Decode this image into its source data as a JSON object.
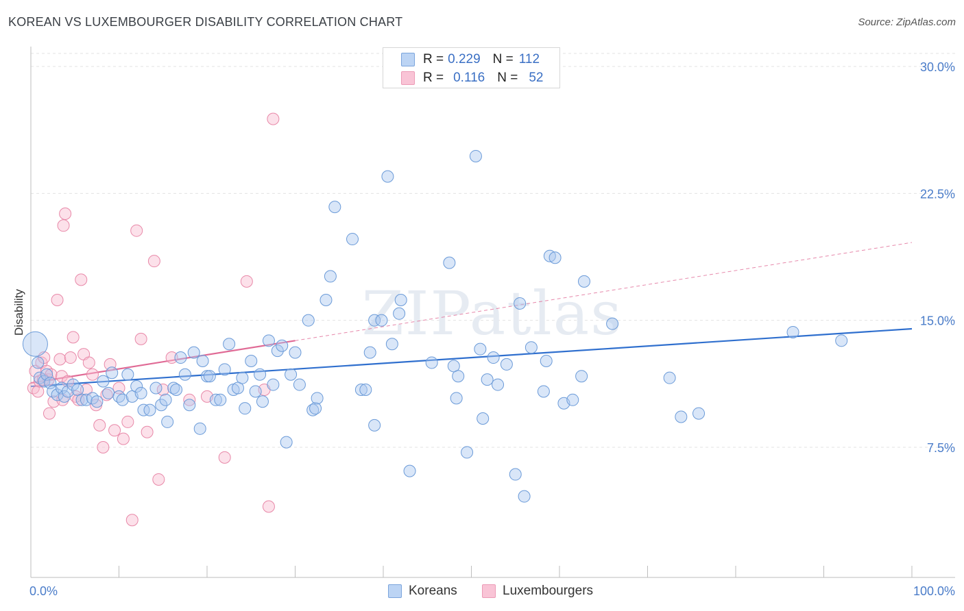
{
  "title": "KOREAN VS LUXEMBOURGER DISABILITY CORRELATION CHART",
  "source": "Source: ZipAtlas.com",
  "legend": {
    "koreans": {
      "r_label": "R =",
      "r": "0.229",
      "n_label": "N =",
      "n": "112"
    },
    "luxembourgers": {
      "r_label": "R =",
      "r": "0.116",
      "n_label": "N =",
      "n": "52"
    }
  },
  "bottom_legend": {
    "koreans": "Koreans",
    "luxembourgers": "Luxembourgers"
  },
  "colors": {
    "korean_fill": "#aac8f0",
    "korean_stroke": "#6a9ad8",
    "korean_line": "#2f6fce",
    "lux_fill": "#f8bcd0",
    "lux_stroke": "#e888a8",
    "lux_line": "#e06a95",
    "axis_text": "#4a7cc9",
    "grid": "#e3e3e3"
  },
  "chart_data": {
    "type": "scatter",
    "title": "KOREAN VS LUXEMBOURGER DISABILITY CORRELATION CHART",
    "xlabel": "",
    "ylabel": "Disability",
    "xlim": [
      0,
      100
    ],
    "ylim": [
      0,
      31.6
    ],
    "yticks": [
      7.5,
      15.0,
      22.5,
      30.0
    ],
    "ytick_labels": [
      "7.5%",
      "15.0%",
      "22.5%",
      "30.0%"
    ],
    "xtick_labels": [
      "0.0%",
      "100.0%"
    ],
    "watermark": "ZIPatlas",
    "series": [
      {
        "name": "Koreans",
        "r": 0.229,
        "n": 112,
        "trend": {
          "x": [
            0,
            100
          ],
          "y": [
            11.1,
            14.5
          ]
        },
        "points": [
          [
            0.5,
            13.6
          ],
          [
            0.8,
            12.5
          ],
          [
            1.0,
            11.6
          ],
          [
            1.5,
            11.4
          ],
          [
            1.8,
            11.8
          ],
          [
            2.2,
            11.3
          ],
          [
            2.5,
            10.8
          ],
          [
            3.0,
            10.6
          ],
          [
            3.5,
            11.0
          ],
          [
            3.8,
            10.5
          ],
          [
            4.2,
            10.8
          ],
          [
            4.8,
            11.2
          ],
          [
            5.3,
            10.9
          ],
          [
            5.8,
            10.3
          ],
          [
            6.3,
            10.3
          ],
          [
            7.0,
            10.4
          ],
          [
            7.5,
            10.2
          ],
          [
            8.2,
            11.4
          ],
          [
            8.8,
            10.7
          ],
          [
            9.2,
            11.9
          ],
          [
            10.0,
            10.5
          ],
          [
            10.4,
            10.3
          ],
          [
            11.0,
            11.8
          ],
          [
            11.5,
            10.5
          ],
          [
            12.0,
            11.1
          ],
          [
            12.5,
            10.7
          ],
          [
            12.8,
            9.7
          ],
          [
            13.5,
            9.7
          ],
          [
            14.2,
            11.0
          ],
          [
            14.8,
            10.0
          ],
          [
            15.3,
            10.3
          ],
          [
            15.5,
            9.0
          ],
          [
            16.2,
            11.0
          ],
          [
            16.5,
            10.9
          ],
          [
            17.0,
            12.8
          ],
          [
            17.5,
            11.8
          ],
          [
            18.0,
            10.0
          ],
          [
            18.5,
            13.1
          ],
          [
            19.2,
            8.6
          ],
          [
            19.5,
            12.6
          ],
          [
            20.0,
            11.7
          ],
          [
            20.3,
            11.7
          ],
          [
            21.0,
            10.3
          ],
          [
            21.5,
            10.3
          ],
          [
            22.0,
            12.1
          ],
          [
            22.5,
            13.6
          ],
          [
            23.0,
            10.9
          ],
          [
            23.5,
            11.0
          ],
          [
            24.0,
            11.6
          ],
          [
            24.3,
            9.8
          ],
          [
            25.0,
            12.6
          ],
          [
            25.5,
            10.8
          ],
          [
            26.0,
            11.8
          ],
          [
            26.3,
            10.2
          ],
          [
            27.0,
            13.8
          ],
          [
            27.5,
            11.2
          ],
          [
            28.0,
            13.2
          ],
          [
            28.5,
            13.5
          ],
          [
            29.0,
            7.8
          ],
          [
            29.5,
            11.8
          ],
          [
            30.0,
            13.1
          ],
          [
            30.5,
            11.2
          ],
          [
            31.5,
            15.0
          ],
          [
            32.0,
            9.7
          ],
          [
            32.3,
            9.8
          ],
          [
            32.5,
            10.4
          ],
          [
            33.5,
            16.2
          ],
          [
            34.0,
            17.6
          ],
          [
            34.5,
            21.7
          ],
          [
            36.5,
            19.8
          ],
          [
            37.5,
            10.9
          ],
          [
            38.0,
            10.9
          ],
          [
            38.5,
            13.1
          ],
          [
            39.0,
            8.8
          ],
          [
            39.0,
            15.0
          ],
          [
            39.8,
            15.0
          ],
          [
            40.5,
            23.5
          ],
          [
            41.0,
            13.6
          ],
          [
            41.8,
            15.4
          ],
          [
            42.0,
            16.2
          ],
          [
            43.0,
            6.1
          ],
          [
            45.5,
            12.5
          ],
          [
            47.5,
            18.4
          ],
          [
            48.0,
            12.3
          ],
          [
            48.3,
            10.4
          ],
          [
            48.5,
            11.7
          ],
          [
            49.5,
            7.2
          ],
          [
            50.5,
            24.7
          ],
          [
            51.0,
            13.3
          ],
          [
            51.3,
            9.2
          ],
          [
            51.8,
            11.5
          ],
          [
            52.5,
            12.8
          ],
          [
            53.0,
            11.2
          ],
          [
            54.0,
            12.4
          ],
          [
            55.0,
            5.9
          ],
          [
            55.5,
            16.0
          ],
          [
            56.0,
            4.6
          ],
          [
            56.8,
            13.4
          ],
          [
            58.2,
            10.8
          ],
          [
            58.5,
            12.6
          ],
          [
            58.9,
            18.8
          ],
          [
            59.5,
            18.7
          ],
          [
            60.5,
            10.1
          ],
          [
            61.5,
            10.3
          ],
          [
            62.5,
            11.7
          ],
          [
            62.8,
            17.3
          ],
          [
            66.0,
            14.8
          ],
          [
            72.5,
            11.6
          ],
          [
            73.8,
            9.3
          ],
          [
            75.8,
            9.5
          ],
          [
            86.5,
            14.3
          ],
          [
            92.0,
            13.8
          ]
        ]
      },
      {
        "name": "Luxembourgers",
        "r": 0.116,
        "n": 52,
        "trend": {
          "x": [
            0,
            30
          ],
          "y": [
            11.3,
            13.8
          ]
        },
        "trend_ext": {
          "x": [
            30,
            100
          ],
          "y": [
            13.8,
            19.6
          ]
        },
        "points": [
          [
            0.3,
            11.0
          ],
          [
            0.5,
            12.0
          ],
          [
            0.8,
            10.8
          ],
          [
            1.0,
            11.4
          ],
          [
            1.2,
            12.5
          ],
          [
            1.5,
            12.8
          ],
          [
            1.8,
            12.0
          ],
          [
            2.0,
            11.5
          ],
          [
            2.3,
            11.8
          ],
          [
            2.6,
            10.2
          ],
          [
            3.0,
            16.2
          ],
          [
            3.3,
            12.7
          ],
          [
            3.5,
            11.7
          ],
          [
            3.7,
            20.6
          ],
          [
            3.9,
            21.3
          ],
          [
            4.2,
            11.4
          ],
          [
            4.5,
            12.8
          ],
          [
            4.8,
            14.0
          ],
          [
            5.1,
            10.5
          ],
          [
            5.4,
            10.3
          ],
          [
            5.7,
            17.4
          ],
          [
            6.0,
            13.0
          ],
          [
            6.3,
            10.9
          ],
          [
            6.6,
            12.5
          ],
          [
            7.0,
            11.8
          ],
          [
            7.4,
            10.0
          ],
          [
            7.8,
            8.8
          ],
          [
            8.2,
            7.5
          ],
          [
            8.6,
            10.6
          ],
          [
            9.0,
            12.4
          ],
          [
            9.5,
            8.5
          ],
          [
            10.0,
            11.0
          ],
          [
            10.5,
            8.0
          ],
          [
            11.0,
            9.0
          ],
          [
            11.5,
            3.2
          ],
          [
            12.0,
            20.3
          ],
          [
            12.5,
            13.9
          ],
          [
            13.2,
            8.4
          ],
          [
            14.0,
            18.5
          ],
          [
            14.5,
            5.6
          ],
          [
            15.0,
            10.9
          ],
          [
            16.0,
            12.8
          ],
          [
            18.0,
            10.3
          ],
          [
            20.0,
            10.5
          ],
          [
            22.0,
            6.9
          ],
          [
            24.5,
            17.3
          ],
          [
            26.5,
            10.9
          ],
          [
            27.0,
            4.0
          ],
          [
            27.5,
            26.9
          ],
          [
            1.4,
            11.5
          ],
          [
            2.1,
            9.5
          ],
          [
            3.6,
            10.3
          ]
        ]
      }
    ]
  }
}
